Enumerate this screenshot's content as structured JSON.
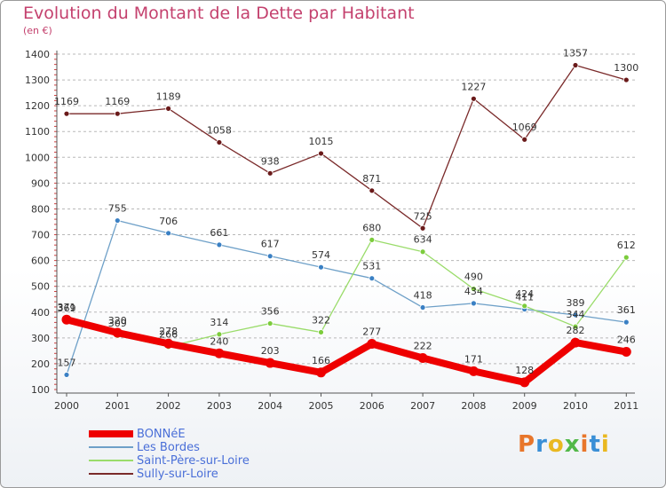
{
  "title": "Evolution du Montant de la Dette par Habitant",
  "unit_label": "(en €)",
  "logo_text": "Proxiti",
  "logo_colors": [
    "#e8762b",
    "#3a8fd6",
    "#e9b820",
    "#52b848",
    "#e8762b",
    "#3a8fd6",
    "#e9b820"
  ],
  "colors": {
    "title": "#c4416e",
    "grid": "#b8b8b8",
    "legend_text": "#4a6fd8"
  },
  "chart_data": {
    "type": "line",
    "title": "Evolution du Montant de la Dette par Habitant",
    "ylabel": "(en €)",
    "xlabel": "",
    "x": [
      "2000",
      "2001",
      "2002",
      "2003",
      "2004",
      "2005",
      "2006",
      "2007",
      "2008",
      "2009",
      "2010",
      "2011"
    ],
    "ylim": [
      100,
      1400
    ],
    "yticks": [
      100,
      200,
      300,
      400,
      500,
      600,
      700,
      800,
      900,
      1000,
      1100,
      1200,
      1300,
      1400
    ],
    "grid": "horizontal dashed",
    "legend_position": "bottom-left",
    "series": [
      {
        "name": "BONNéE",
        "values": [
          371,
          320,
          278,
          240,
          203,
          166,
          277,
          222,
          171,
          128,
          282,
          246
        ],
        "color": "#ee0000",
        "marker": "#ee0000",
        "width": 8,
        "marker_r": 5.5
      },
      {
        "name": "Les Bordes",
        "values": [
          157,
          755,
          706,
          661,
          617,
          574,
          531,
          418,
          434,
          411,
          389,
          361
        ],
        "color": "#6ea0c8",
        "marker": "#3a80c4",
        "width": 1.3,
        "marker_r": 3
      },
      {
        "name": "Saint-Père-sur-Loire",
        "values": [
          369,
          309,
          266,
          314,
          356,
          322,
          680,
          634,
          490,
          424,
          344,
          612
        ],
        "color": "#9adc6a",
        "marker": "#7ccc3c",
        "width": 1.3,
        "marker_r": 3
      },
      {
        "name": "Sully-sur-Loire",
        "values": [
          1169,
          1169,
          1189,
          1058,
          938,
          1015,
          871,
          725,
          1227,
          1069,
          1357,
          1300
        ],
        "color": "#7a2a2a",
        "marker": "#6a1a1a",
        "width": 1.3,
        "marker_r": 3
      }
    ]
  }
}
